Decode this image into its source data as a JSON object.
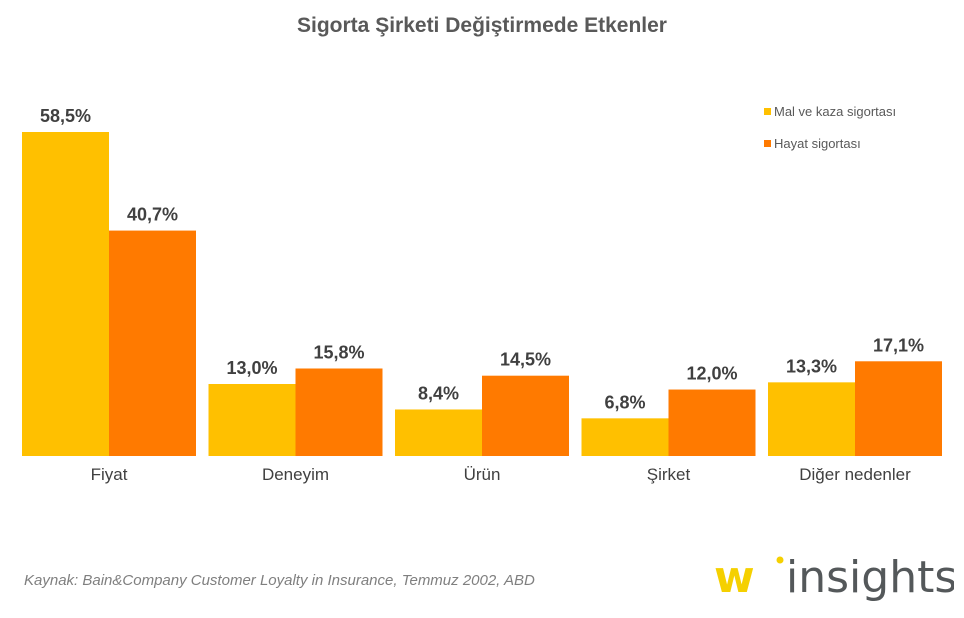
{
  "title": "Sigorta Şirketi Değiştirmede Etkenler",
  "source": "Kaynak: Bain&Company Customer Loyalty in Insurance, Temmuz 2002, ABD",
  "logo": {
    "text": "w insights",
    "w": "w",
    "rest": "insights"
  },
  "chart_data": {
    "type": "bar",
    "title": "Sigorta Şirketi Değiştirmede Etkenler",
    "categories": [
      "Fiyat",
      "Deneyim",
      "Ürün",
      "Şirket",
      "Diğer nedenler"
    ],
    "series": [
      {
        "name": "Mal ve kaza sigortası",
        "color": "#FFC000",
        "values": [
          58.5,
          13.0,
          8.4,
          6.8,
          13.3
        ],
        "labels": [
          "58,5%",
          "13,0%",
          "8,4%",
          "6,8%",
          "13,3%"
        ]
      },
      {
        "name": "Hayat sigortası",
        "color": "#FF7A00",
        "values": [
          40.7,
          15.8,
          14.5,
          12.0,
          17.1
        ],
        "labels": [
          "40,7%",
          "15,8%",
          "14,5%",
          "12,0%",
          "17,1%"
        ]
      }
    ],
    "ylim": [
      0,
      58.5
    ],
    "grid": false,
    "legend": "top-right"
  }
}
